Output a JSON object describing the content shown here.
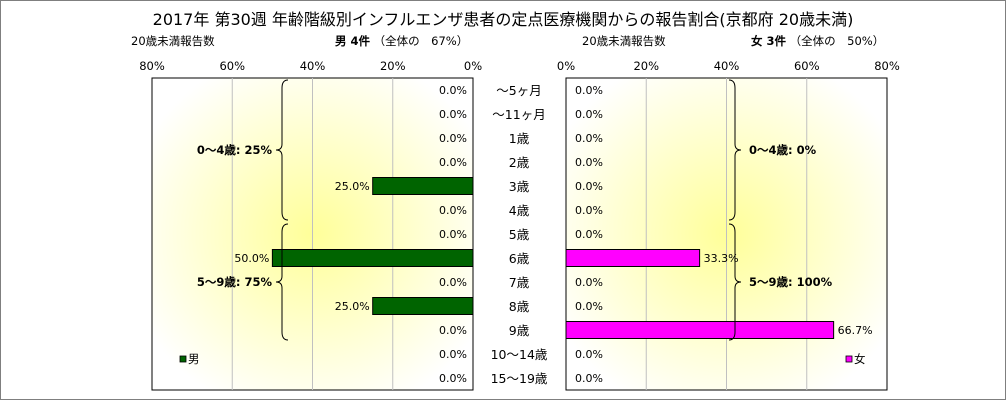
{
  "title": "2017年 第30週 年齢階級別インフルエンザ患者の定点医療機関からの報告割合(京都府 20歳未満)",
  "left_panel": {
    "caption_left": "20歳未満報告数",
    "caption_main": "男 4件",
    "caption_sub": "（全体の　67%）"
  },
  "right_panel": {
    "caption_left": "20歳未満報告数",
    "caption_main": "女 3件",
    "caption_sub": "（全体の　50%）"
  },
  "colors": {
    "male": "#006400",
    "female": "#ff00ff",
    "plot_center": "#ffff99",
    "plot_edge": "#ffffff"
  },
  "chart_data": [
    {
      "type": "bar",
      "orientation": "horizontal",
      "direction": "right-to-left",
      "categories": [
        "〜5ヶ月",
        "〜11ヶ月",
        "1歳",
        "2歳",
        "3歳",
        "4歳",
        "5歳",
        "6歳",
        "7歳",
        "8歳",
        "9歳",
        "10〜14歳",
        "15〜19歳"
      ],
      "series": [
        {
          "name": "男",
          "values": [
            0,
            0,
            0,
            0,
            25,
            0,
            0,
            50,
            0,
            25,
            0,
            0,
            0
          ]
        }
      ],
      "value_labels": [
        "0.0%",
        "0.0%",
        "0.0%",
        "0.0%",
        "25.0%",
        "0.0%",
        "0.0%",
        "50.0%",
        "0.0%",
        "25.0%",
        "0.0%",
        "0.0%",
        "0.0%"
      ],
      "xticks": [
        "80%",
        "60%",
        "40%",
        "20%",
        "0%"
      ],
      "xlim": [
        0,
        80
      ],
      "groups": [
        {
          "label": "0〜4歳: 25%",
          "from": 0,
          "to": 5
        },
        {
          "label": "5〜9歳: 75%",
          "from": 6,
          "to": 10
        }
      ],
      "legend": "男",
      "legend_position": "bottom-left"
    },
    {
      "type": "bar",
      "orientation": "horizontal",
      "direction": "left-to-right",
      "categories": [
        "〜5ヶ月",
        "〜11ヶ月",
        "1歳",
        "2歳",
        "3歳",
        "4歳",
        "5歳",
        "6歳",
        "7歳",
        "8歳",
        "9歳",
        "10〜14歳",
        "15〜19歳"
      ],
      "series": [
        {
          "name": "女",
          "values": [
            0,
            0,
            0,
            0,
            0,
            0,
            0,
            33.3,
            0,
            0,
            66.7,
            0,
            0
          ]
        }
      ],
      "value_labels": [
        "0.0%",
        "0.0%",
        "0.0%",
        "0.0%",
        "0.0%",
        "0.0%",
        "0.0%",
        "33.3%",
        "0.0%",
        "0.0%",
        "66.7%",
        "0.0%",
        "0.0%"
      ],
      "xticks": [
        "0%",
        "20%",
        "40%",
        "60%",
        "80%"
      ],
      "xlim": [
        0,
        80
      ],
      "groups": [
        {
          "label": "0〜4歳: 0%",
          "from": 0,
          "to": 5
        },
        {
          "label": "5〜9歳: 100%",
          "from": 6,
          "to": 10
        }
      ],
      "legend": "女",
      "legend_position": "bottom-right"
    }
  ]
}
